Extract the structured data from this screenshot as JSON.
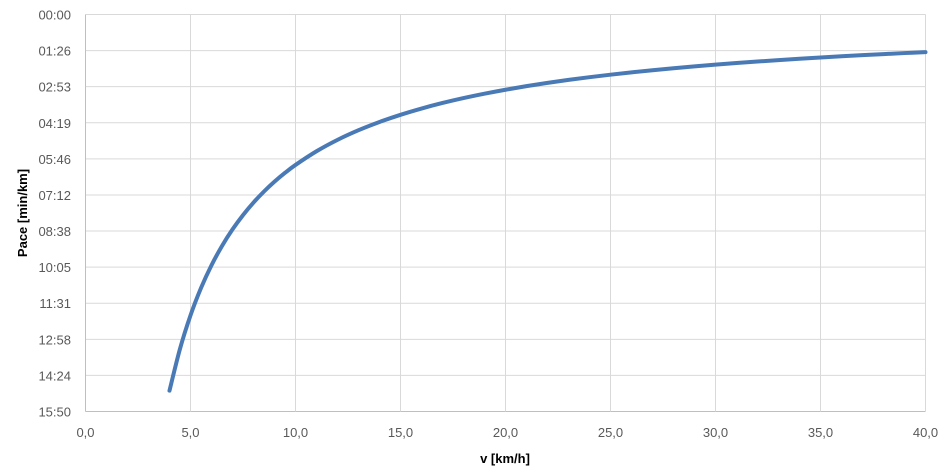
{
  "chart_data": {
    "type": "line",
    "title": "",
    "xlabel": "v [km/h]",
    "ylabel": "Pace [min/km]",
    "xlim": [
      0,
      40
    ],
    "ylim_minutes": [
      0,
      15.8333
    ],
    "y_inverted": true,
    "grid": true,
    "x_ticks": [
      0,
      5,
      10,
      15,
      20,
      25,
      30,
      35,
      40
    ],
    "x_tick_labels": [
      "0,0",
      "5,0",
      "10,0",
      "15,0",
      "20,0",
      "25,0",
      "30,0",
      "35,0",
      "40,0"
    ],
    "y_tick_labels": [
      "00:00",
      "01:26",
      "02:53",
      "04:19",
      "05:46",
      "07:12",
      "08:38",
      "10:05",
      "11:31",
      "12:58",
      "14:24",
      "15:50"
    ],
    "series": [
      {
        "name": "Pace",
        "color": "#4a7ab5",
        "x": [
          4,
          4.5,
          5,
          5.5,
          6,
          6.5,
          7,
          7.5,
          8,
          8.5,
          9,
          9.5,
          10,
          11,
          12,
          13,
          14,
          15,
          16,
          17,
          18,
          19,
          20,
          21,
          22,
          23,
          24,
          25,
          26,
          27,
          28,
          29,
          30,
          31,
          32,
          33,
          34,
          35,
          36,
          37,
          38,
          39,
          40
        ],
        "y_minutes": [
          15,
          13.333,
          12,
          10.909,
          10,
          9.231,
          8.571,
          8,
          7.5,
          7.059,
          6.667,
          6.316,
          6,
          5.455,
          5,
          4.615,
          4.286,
          4,
          3.75,
          3.529,
          3.333,
          3.158,
          3,
          2.857,
          2.727,
          2.609,
          2.5,
          2.4,
          2.308,
          2.222,
          2.143,
          2.069,
          2,
          1.935,
          1.875,
          1.818,
          1.765,
          1.714,
          1.667,
          1.622,
          1.579,
          1.538,
          1.5
        ]
      }
    ]
  }
}
